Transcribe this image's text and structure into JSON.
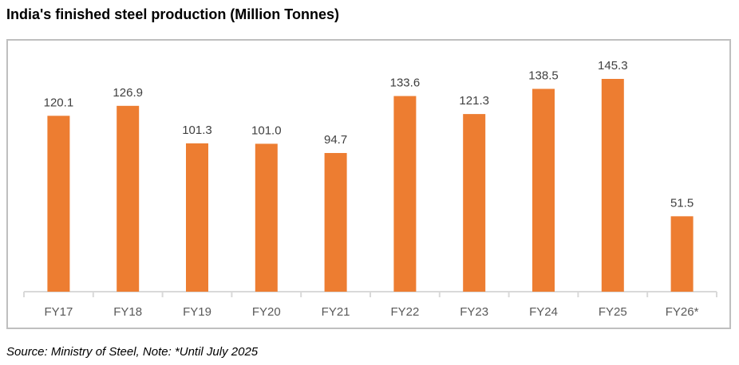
{
  "chart_data": {
    "type": "bar",
    "title": "India's finished steel production (Million Tonnes)",
    "categories": [
      "FY17",
      "FY18",
      "FY19",
      "FY20",
      "FY21",
      "FY22",
      "FY23",
      "FY24",
      "FY25",
      "FY26*"
    ],
    "values": [
      120.1,
      126.9,
      101.3,
      101.0,
      94.7,
      133.6,
      121.3,
      138.5,
      145.3,
      51.5
    ],
    "value_labels": [
      "120.1",
      "126.9",
      "101.3",
      "101.0",
      "94.7",
      "133.6",
      "121.3",
      "138.5",
      "145.3",
      "51.5"
    ],
    "xlabel": "",
    "ylabel": "",
    "ylim": [
      0,
      145.3
    ],
    "grid": false,
    "bar_color": "#ed7d31"
  },
  "source": "Source: Ministry of Steel, Note: *Until July 2025"
}
